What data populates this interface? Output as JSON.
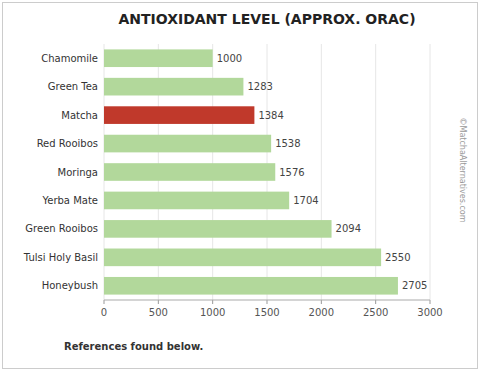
{
  "chart_data": {
    "type": "bar",
    "orientation": "horizontal",
    "title": "ANTIOXIDANT LEVEL (APPROX. ORAC)",
    "categories": [
      "Honeybush",
      "Tulsi Holy Basil",
      "Green Rooibos",
      "Yerba Mate",
      "Moringa",
      "Red Rooibos",
      "Matcha",
      "Green Tea",
      "Chamomile"
    ],
    "values": [
      2705,
      2550,
      2094,
      1704,
      1576,
      1538,
      1384,
      1283,
      1000
    ],
    "colors": [
      "#b2d89b",
      "#b2d89b",
      "#b2d89b",
      "#b2d89b",
      "#b2d89b",
      "#b2d89b",
      "#c0392b",
      "#b2d89b",
      "#b2d89b"
    ],
    "xlim": [
      0,
      3000
    ],
    "xticks": [
      0,
      500,
      1000,
      1500,
      2000,
      2500,
      3000
    ],
    "grid": true,
    "data_labels": true,
    "annotations": [
      "References found below.",
      "©MatchaAlternatives.com"
    ]
  }
}
